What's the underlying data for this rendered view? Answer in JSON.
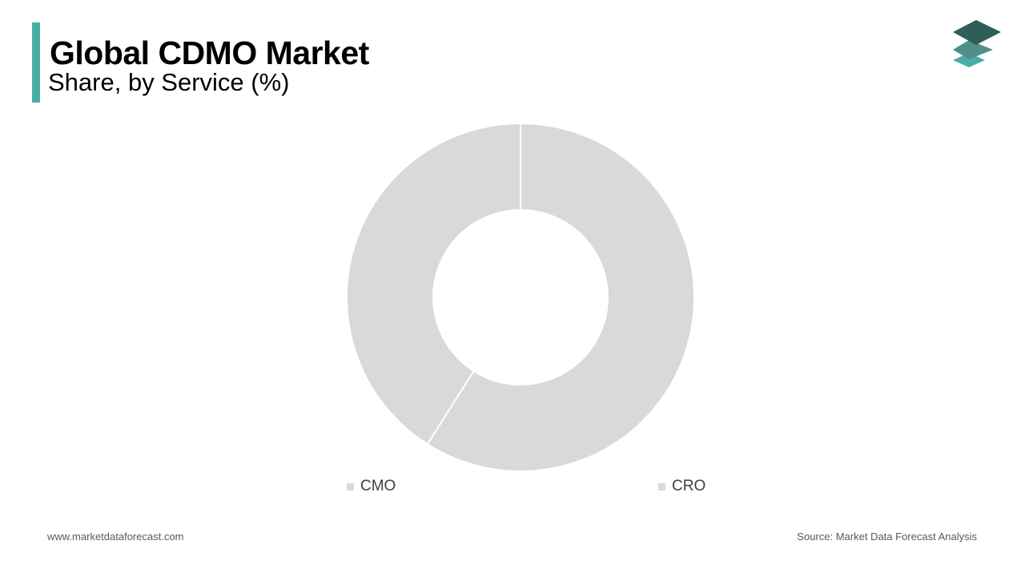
{
  "header": {
    "title": "Global CDMO Market",
    "subtitle": "Share, by Service (%)"
  },
  "colors": {
    "accent": "#4aaea6",
    "slice": "#d9d9d9",
    "logo_dark": "#2e5e58",
    "logo_mid": "#4f8f88",
    "logo_light": "#4aaea6"
  },
  "icons": {
    "logo": "stacked-layers-logo-icon"
  },
  "chart_data": {
    "type": "pie",
    "variant": "donut",
    "categories": [
      "CMO",
      "CRO"
    ],
    "values": [
      59,
      41
    ],
    "legend_position": "bottom"
  },
  "footer": {
    "website": "www.marketdataforecast.com",
    "source": "Source: Market Data Forecast Analysis"
  }
}
